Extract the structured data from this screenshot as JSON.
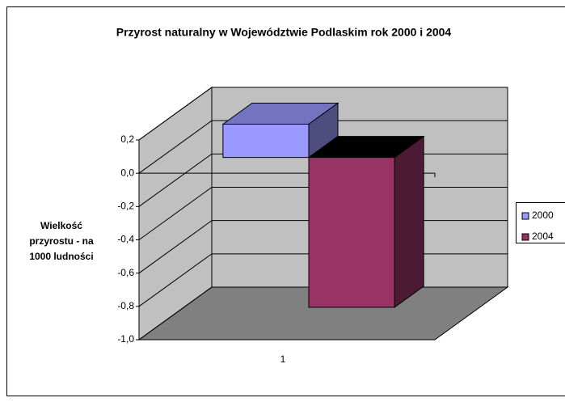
{
  "chart_data": {
    "type": "bar3d",
    "title": "Przyrost naturalny w Województwie Podlaskim rok 2000 i 2004",
    "y_label": "Wielkość przyrostu - na 1000 ludności",
    "categories": [
      "1"
    ],
    "series": [
      {
        "name": "2000",
        "color": "#9999ff",
        "values": [
          0.2
        ]
      },
      {
        "name": "2004",
        "color": "#993366",
        "values": [
          -0.9
        ]
      }
    ],
    "ylim": [
      -1.0,
      0.2
    ],
    "yticks": [
      {
        "value": 0.2,
        "label": "0,2"
      },
      {
        "value": 0.0,
        "label": "0,0"
      },
      {
        "value": -0.2,
        "label": "-0,2"
      },
      {
        "value": -0.4,
        "label": "-0,4"
      },
      {
        "value": -0.6,
        "label": "-0,6"
      },
      {
        "value": -0.8,
        "label": "-0,8"
      },
      {
        "value": -1.0,
        "label": "-1,0"
      }
    ],
    "grid": true,
    "legend": "right"
  }
}
